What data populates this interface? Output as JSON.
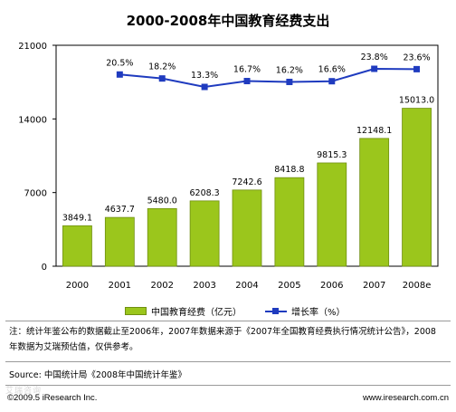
{
  "chart_data": {
    "type": "bar",
    "title": "2000-2008年中国教育经费支出",
    "categories": [
      "2000",
      "2001",
      "2002",
      "2003",
      "2004",
      "2005",
      "2006",
      "2007",
      "2008e"
    ],
    "series": [
      {
        "name": "中国教育经费（亿元）",
        "type": "bar",
        "values": [
          3849.1,
          4637.7,
          5480.0,
          6208.3,
          7242.6,
          8418.8,
          9815.3,
          12148.1,
          15013.0
        ],
        "labels": [
          "3849.1",
          "4637.7",
          "5480.0",
          "6208.3",
          "7242.6",
          "8418.8",
          "9815.3",
          "12148.1",
          "15013.0"
        ]
      },
      {
        "name": "增长率（%）",
        "type": "line",
        "values": [
          null,
          20.5,
          18.2,
          13.3,
          16.7,
          16.2,
          16.6,
          23.8,
          23.6
        ],
        "labels": [
          "",
          "20.5%",
          "18.2%",
          "13.3%",
          "16.7%",
          "16.2%",
          "16.6%",
          "23.8%",
          "23.6%"
        ]
      }
    ],
    "ylim": [
      0,
      21000
    ],
    "yticks": [
      "0",
      "7000",
      "14000",
      "21000"
    ],
    "grid": false,
    "legend_position": "bottom",
    "colors": {
      "bar": "#9bc61c",
      "bar_edge": "#6f8f10",
      "line": "#1f3bbf"
    }
  },
  "note": "注：统计年鉴公布的数据截止至2006年，2007年数据来源于《2007年全国教育经费执行情况统计公告》，2008年数据为艾瑞预估值，仅供参考。",
  "source": "Source: 中国统计局《2008年中国统计年鉴》",
  "footer_left": "©2009.5 iResearch Inc.",
  "footer_right": "www.iresearch.com.cn",
  "watermark": "艾瑞咨询"
}
